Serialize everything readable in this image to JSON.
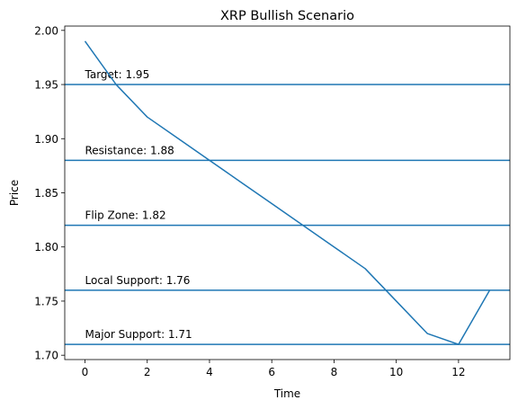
{
  "chart_data": {
    "type": "line",
    "title": "XRP Bullish Scenario",
    "xlabel": "Time",
    "ylabel": "Price",
    "xlim": [
      -0.65,
      13.65
    ],
    "ylim": [
      1.696,
      2.004
    ],
    "xticks": [
      0,
      2,
      4,
      6,
      8,
      10,
      12
    ],
    "xtick_labels": [
      "0",
      "2",
      "4",
      "6",
      "8",
      "10",
      "12"
    ],
    "yticks": [
      1.7,
      1.75,
      1.8,
      1.85,
      1.9,
      1.95,
      2.0
    ],
    "ytick_labels": [
      "1.70",
      "1.75",
      "1.80",
      "1.85",
      "1.90",
      "1.95",
      "2.00"
    ],
    "grid": false,
    "series": [
      {
        "color": "#1f77b4",
        "x": [
          0,
          1,
          2,
          3,
          4,
          5,
          6,
          7,
          8,
          9,
          10,
          11,
          12,
          13
        ],
        "y": [
          1.99,
          1.95,
          1.92,
          1.9,
          1.88,
          1.86,
          1.84,
          1.82,
          1.8,
          1.78,
          1.75,
          1.72,
          1.71,
          1.76
        ]
      }
    ],
    "hlines": [
      {
        "y": 1.95,
        "label": "Target: 1.95"
      },
      {
        "y": 1.88,
        "label": "Resistance: 1.88"
      },
      {
        "y": 1.82,
        "label": "Flip Zone: 1.82"
      },
      {
        "y": 1.76,
        "label": "Local Support: 1.76"
      },
      {
        "y": 1.71,
        "label": "Major Support: 1.71"
      }
    ],
    "line_color": "#1f77b4"
  }
}
